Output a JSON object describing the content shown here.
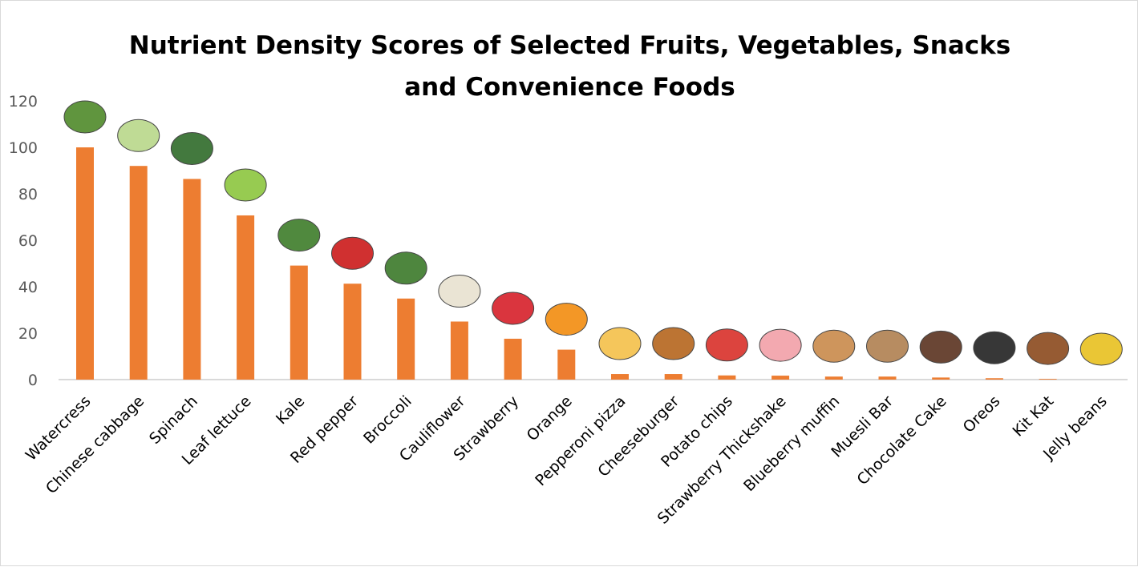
{
  "chart_data": {
    "type": "bar",
    "title_lines": [
      "Nutrient Density Scores of Selected Fruits, Vegetables, Snacks",
      "and Convenience Foods"
    ],
    "xlabel": "",
    "ylabel": "",
    "ylim": [
      0,
      120
    ],
    "yticks": [
      0,
      20,
      40,
      60,
      80,
      100,
      120
    ],
    "grid": false,
    "legend": "none",
    "bar_color": "#ED7D31",
    "categories": [
      "Watercress",
      "Chinese cabbage",
      "Spinach",
      "Leaf lettuce",
      "Kale",
      "Red pepper",
      "Broccoli",
      "Cauliflower",
      "Strawberry",
      "Orange",
      "Pepperoni pizza",
      "Cheeseburger",
      "Potato chips",
      "Strawberry Thickshake",
      "Blueberry muffin",
      "Muesli Bar",
      "Chocolate Cake",
      "Oreos",
      "Kit Kat",
      "Jelly beans"
    ],
    "values": [
      100,
      92,
      86.4,
      70.7,
      49.1,
      41.3,
      34.9,
      25,
      17.6,
      12.9,
      2.4,
      2.4,
      1.8,
      1.7,
      1.3,
      1.3,
      0.9,
      0.6,
      0.3,
      0
    ],
    "icons": [
      "watercress-icon",
      "chinese-cabbage-icon",
      "spinach-icon",
      "lettuce-icon",
      "kale-icon",
      "red-pepper-icon",
      "broccoli-icon",
      "cauliflower-icon",
      "strawberry-icon",
      "orange-icon",
      "pizza-icon",
      "cheeseburger-icon",
      "potato-chips-icon",
      "thickshake-icon",
      "muffin-icon",
      "muesli-bar-icon",
      "chocolate-cake-icon",
      "oreo-icon",
      "kit-kat-icon",
      "jelly-beans-icon"
    ],
    "icon_colors": [
      "#4f8a2a",
      "#b9d88a",
      "#2f6b2a",
      "#8cc63f",
      "#3e7d2a",
      "#cc1a1a",
      "#3b7a2a",
      "#e8e2d0",
      "#d6202a",
      "#f28c0f",
      "#f5c04a",
      "#b5651d",
      "#d9302a",
      "#f2a0a8",
      "#c98a4b",
      "#b08050",
      "#5a3220",
      "#222222",
      "#8b4a1e",
      "#e8c020"
    ]
  }
}
